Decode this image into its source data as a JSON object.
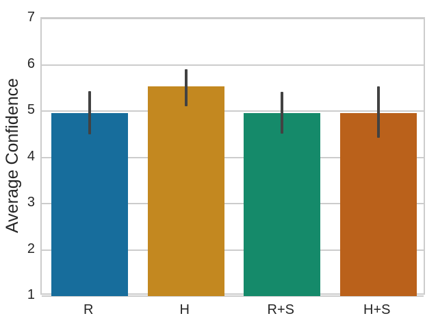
{
  "figure": {
    "ylabel": "Average Confidence"
  },
  "chart_data": {
    "type": "bar",
    "title": "",
    "xlabel": "",
    "ylabel": "Average Confidence",
    "categories": [
      "R",
      "H",
      "R+S",
      "H+S"
    ],
    "values": [
      4.96,
      5.53,
      4.96,
      4.96
    ],
    "error_low": [
      4.5,
      5.11,
      4.51,
      4.42
    ],
    "error_high": [
      5.43,
      5.9,
      5.41,
      5.53
    ],
    "ylim": [
      1,
      7
    ],
    "yticks": [
      1,
      2,
      3,
      4,
      5,
      6,
      7
    ],
    "grid": "horizontal",
    "legend": "none",
    "bar_colors": [
      "#176d9c",
      "#c38820",
      "#158a6a",
      "#ba611b"
    ],
    "error_bar_color": "#424242",
    "grid_color": "#cccccc",
    "tick_label_color": "#262626",
    "background": "#ffffff"
  }
}
